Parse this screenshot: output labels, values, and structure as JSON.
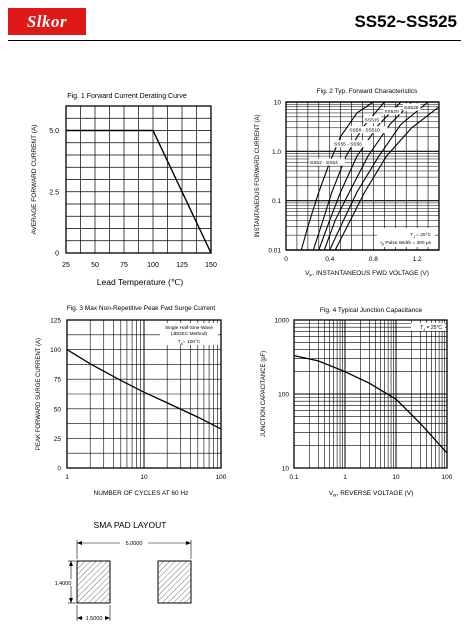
{
  "header": {
    "logo_text": "Slkor",
    "part_number": "SS52~SS525",
    "logo_color": "#e01818"
  },
  "chart_data": [
    {
      "id": "fig1",
      "type": "line",
      "title": "Fig. 1  Forward Current Derating Curve",
      "xlabel": "Lead Temperature (℃)",
      "ylabel": "AVERAGE FORWARD CURRENT (A)",
      "xlim": [
        25,
        150
      ],
      "ylim": [
        0,
        6
      ],
      "xticks": [
        25,
        50,
        75,
        100,
        125,
        150
      ],
      "yticks": [
        0,
        2.5,
        5.0
      ],
      "ytick_labels": [
        "0",
        "2.5",
        "5.0"
      ],
      "x": [
        25,
        100,
        150
      ],
      "y": [
        5.0,
        5.0,
        0
      ],
      "grid": true
    },
    {
      "id": "fig2",
      "type": "line",
      "title": "Fig. 2  Typ. Forward Characteristics",
      "xlabel": "V₂, INSTANTANEOUS FWD VOLTAGE (V)",
      "xlabel_prefix": "V",
      "xlabel_sub": "F",
      "xlabel_rest": ", INSTANTANEOUS FWD VOLTAGE (V)",
      "ylabel": "INSTANTANEOUS FORWARD CURRENT (A)",
      "xlim": [
        0,
        1.4
      ],
      "ylim": [
        0.01,
        10
      ],
      "yscale": "log",
      "xticks": [
        0,
        0.4,
        0.8,
        1.2
      ],
      "xtick_labels": [
        "0",
        "0.4",
        "0.8",
        "1.2"
      ],
      "yticks": [
        0.01,
        0.1,
        1.0,
        10
      ],
      "ytick_labels": [
        "0.01",
        "0.1",
        "1.0",
        "10"
      ],
      "series": [
        {
          "name": "SS52 - SS54",
          "x": [
            0.14,
            0.2,
            0.3,
            0.4,
            0.5,
            0.65,
            0.8
          ],
          "y": [
            0.01,
            0.03,
            0.15,
            0.6,
            2.0,
            6.0,
            10
          ]
        },
        {
          "name": "SS55 - SS56",
          "x": [
            0.25,
            0.32,
            0.42,
            0.55,
            0.7,
            0.9
          ],
          "y": [
            0.01,
            0.03,
            0.15,
            0.8,
            3.0,
            10
          ]
        },
        {
          "name": "SS58 - SS510",
          "x": [
            0.3,
            0.4,
            0.5,
            0.65,
            0.85,
            1.05
          ],
          "y": [
            0.01,
            0.04,
            0.15,
            0.8,
            3.5,
            10
          ]
        },
        {
          "name": "SS515",
          "x": [
            0.35,
            0.45,
            0.58,
            0.75,
            0.95,
            1.15
          ],
          "y": [
            0.01,
            0.04,
            0.15,
            0.8,
            3.5,
            10
          ]
        },
        {
          "name": "SS520",
          "x": [
            0.4,
            0.5,
            0.65,
            0.85,
            1.05,
            1.3
          ],
          "y": [
            0.01,
            0.03,
            0.15,
            0.8,
            3.5,
            10
          ]
        },
        {
          "name": "SS525",
          "x": [
            0.45,
            0.56,
            0.72,
            0.92,
            1.15,
            1.4
          ],
          "y": [
            0.01,
            0.03,
            0.15,
            0.8,
            3.0,
            8.0
          ]
        }
      ],
      "legend_labels": [
        "SS52 - SS54",
        "SS55 - SS56",
        "SS58 - SS510",
        "SS515",
        "SS520",
        "SS525"
      ],
      "annotation_1_pre": "T",
      "annotation_1_sub": "J",
      "annotation_1_post": " = 25°C",
      "annotation_2_pre": "I",
      "annotation_2_sub": "P",
      "annotation_2_post": " Pulse Width = 300 μs",
      "grid": true
    },
    {
      "id": "fig3",
      "type": "line",
      "title": "Fig. 3  Max Non-Repetitive Peak Fwd Surge Current",
      "xlabel": "NUMBER OF CYCLES AT 60 Hz",
      "ylabel": "PEAK FORWARD SURGE CURRENT (A)",
      "xscale": "log",
      "xlim": [
        1,
        100
      ],
      "ylim": [
        0,
        125
      ],
      "xticks": [
        1,
        10,
        100
      ],
      "yticks": [
        0,
        25,
        50,
        75,
        100,
        125
      ],
      "x": [
        1,
        2,
        5,
        10,
        20,
        50,
        100
      ],
      "y": [
        100,
        88,
        74,
        64,
        55,
        43,
        33
      ],
      "annotation_1": "Single Half-Sine-Wave",
      "annotation_2": "(JEDEC Method)",
      "annotation_3_pre": "T",
      "annotation_3_sub": "A",
      "annotation_3_post": "= 100°C",
      "grid": true
    },
    {
      "id": "fig4",
      "type": "line",
      "title": "Fig. 4  Typical Junction Capacitance",
      "xlabel_prefix": "V",
      "xlabel_sub": "R",
      "xlabel_rest": ", REVERSE VOLTAGE (V)",
      "ylabel": "JUNCTION CAPACITANCE (pF)",
      "xscale": "log",
      "yscale": "log",
      "xlim": [
        0.1,
        100
      ],
      "ylim": [
        10,
        1000
      ],
      "xticks": [
        0.1,
        1,
        10,
        100
      ],
      "xtick_labels": [
        "0.1",
        "1",
        "10",
        "100"
      ],
      "yticks": [
        10,
        100,
        1000
      ],
      "x": [
        0.1,
        0.3,
        1,
        3,
        10,
        30,
        100
      ],
      "y": [
        330,
        280,
        200,
        140,
        85,
        40,
        16
      ],
      "annotation_pre": "T",
      "annotation_sub": "J",
      "annotation_post": " = 25°C",
      "grid": true
    }
  ],
  "pad_layout": {
    "title": "SMA PAD LAYOUT",
    "dim_width": "5.0000",
    "dim_height": "1.4000",
    "dim_pad": "1.5000"
  }
}
